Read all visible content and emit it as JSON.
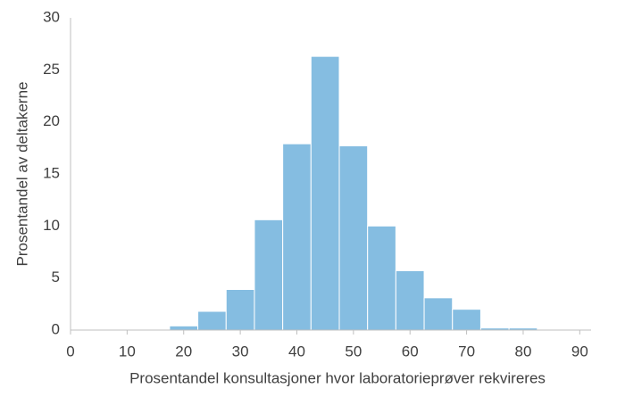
{
  "chart_data": {
    "type": "histogram",
    "xlabel": "Prosentandel konsultasjoner hvor laboratorieprøver rekvireres",
    "ylabel": "Prosentandel av deltakerne",
    "bins": [
      17.5,
      22.5,
      27.5,
      32.5,
      37.5,
      42.5,
      47.5,
      52.5,
      57.5,
      62.5,
      67.5,
      72.5,
      77.5,
      82.5
    ],
    "values": [
      0.4,
      1.8,
      3.9,
      10.6,
      17.9,
      26.3,
      17.7,
      10.0,
      5.7,
      3.1,
      2.0,
      0.2,
      0.2
    ],
    "color": "#85bde1",
    "xlim": [
      0,
      92
    ],
    "xticks": [
      0,
      10,
      20,
      30,
      40,
      50,
      60,
      70,
      80,
      90
    ],
    "ylim": [
      0,
      30
    ],
    "yticks": [
      0,
      5,
      10,
      15,
      20,
      25,
      30
    ],
    "grid": false
  }
}
